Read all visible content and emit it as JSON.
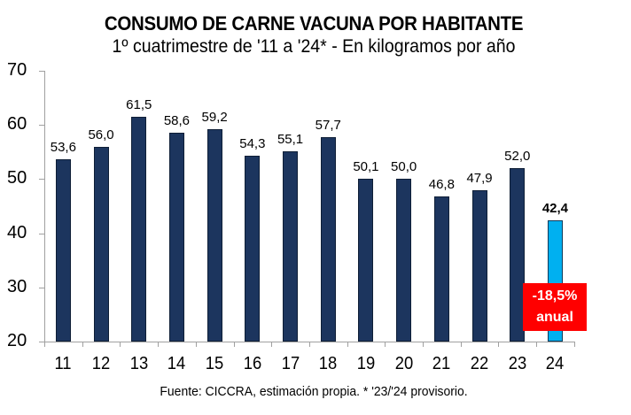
{
  "header": {
    "title": "CONSUMO DE CARNE VACUNA POR HABITANTE",
    "subtitle": "1º cuatrimestre de '11 a '24* - En kilogramos por año"
  },
  "footer": {
    "source": "Fuente: CICCRA, estimación propia. * '23/'24 provisorio."
  },
  "callout": {
    "line1": "-18,5%",
    "line2": "anual",
    "color": "#ff0000"
  },
  "colors": {
    "bar": "#1c355e",
    "highlight_bar": "#00b0f0"
  },
  "y_ticks": [
    "70",
    "60",
    "50",
    "40",
    "30",
    "20"
  ],
  "bars": [
    {
      "cat": "11",
      "value": 53.6,
      "label": "53,6"
    },
    {
      "cat": "12",
      "value": 56.0,
      "label": "56,0"
    },
    {
      "cat": "13",
      "value": 61.5,
      "label": "61,5"
    },
    {
      "cat": "14",
      "value": 58.6,
      "label": "58,6"
    },
    {
      "cat": "15",
      "value": 59.2,
      "label": "59,2"
    },
    {
      "cat": "16",
      "value": 54.3,
      "label": "54,3"
    },
    {
      "cat": "17",
      "value": 55.1,
      "label": "55,1"
    },
    {
      "cat": "18",
      "value": 57.7,
      "label": "57,7"
    },
    {
      "cat": "19",
      "value": 50.1,
      "label": "50,1"
    },
    {
      "cat": "20",
      "value": 50.0,
      "label": "50,0"
    },
    {
      "cat": "21",
      "value": 46.8,
      "label": "46,8"
    },
    {
      "cat": "22",
      "value": 47.9,
      "label": "47,9"
    },
    {
      "cat": "23",
      "value": 52.0,
      "label": "52,0"
    },
    {
      "cat": "24",
      "value": 42.4,
      "label": "42,4",
      "highlight": true
    }
  ],
  "chart_data": {
    "type": "bar",
    "title": "CONSUMO DE CARNE VACUNA POR HABITANTE",
    "subtitle": "1º cuatrimestre de '11 a '24* - En kilogramos por año",
    "categories": [
      "11",
      "12",
      "13",
      "14",
      "15",
      "16",
      "17",
      "18",
      "19",
      "20",
      "21",
      "22",
      "23",
      "24"
    ],
    "values": [
      53.6,
      56.0,
      61.5,
      58.6,
      59.2,
      54.3,
      55.1,
      57.7,
      50.1,
      50.0,
      46.8,
      47.9,
      52.0,
      42.4
    ],
    "xlabel": "",
    "ylabel": "",
    "ylim": [
      20,
      70
    ],
    "yticks": [
      20,
      30,
      40,
      50,
      60,
      70
    ],
    "grid": false,
    "legend": null,
    "annotations": [
      "-18,5% anual"
    ],
    "highlight_category": "24",
    "footnote": "Fuente: CICCRA, estimación propia. * '23/'24 provisorio."
  }
}
